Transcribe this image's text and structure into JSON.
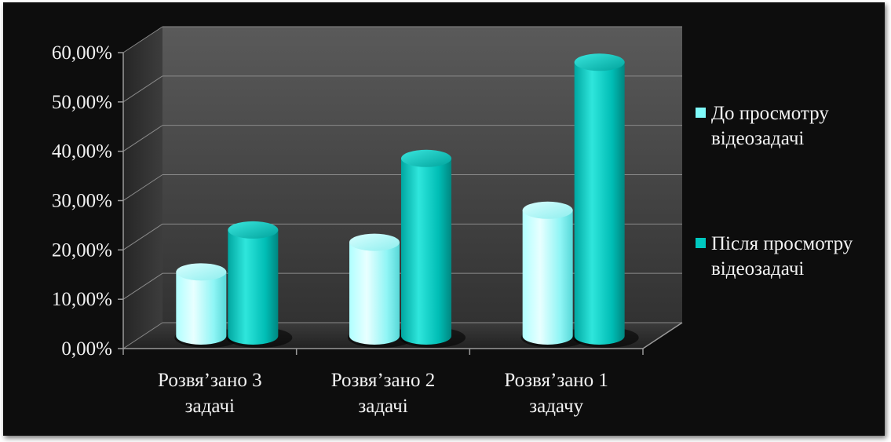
{
  "chart_data": {
    "type": "bar",
    "style": "3d-cylinder",
    "title": "",
    "xlabel": "",
    "ylabel": "",
    "ylim": [
      0,
      0.6
    ],
    "y_tick_labels": [
      "0,00%",
      "10,00%",
      "20,00%",
      "30,00%",
      "40,00%",
      "50,00%",
      "60,00%"
    ],
    "categories": [
      [
        "Розвя’зано 3",
        "задачі"
      ],
      [
        "Розвя’зано 2",
        "задачі"
      ],
      [
        "Розвя’зано 1",
        "задачу"
      ]
    ],
    "series": [
      {
        "name": "До просмотру відеозадачі",
        "legend_lines": [
          "До просмотру",
          "відеозадачі"
        ],
        "color": "#7ffafa",
        "values": [
          0.13,
          0.19,
          0.255
        ]
      },
      {
        "name": "Після просмотру відеозадачі",
        "legend_lines": [
          "Після просмотру",
          "відеозадачі"
        ],
        "color": "#00c8c0",
        "values": [
          0.215,
          0.36,
          0.555
        ]
      }
    ],
    "grid": true,
    "legend_position": "right",
    "background_color": "#0d0d0d",
    "wall_color": "#404040"
  }
}
